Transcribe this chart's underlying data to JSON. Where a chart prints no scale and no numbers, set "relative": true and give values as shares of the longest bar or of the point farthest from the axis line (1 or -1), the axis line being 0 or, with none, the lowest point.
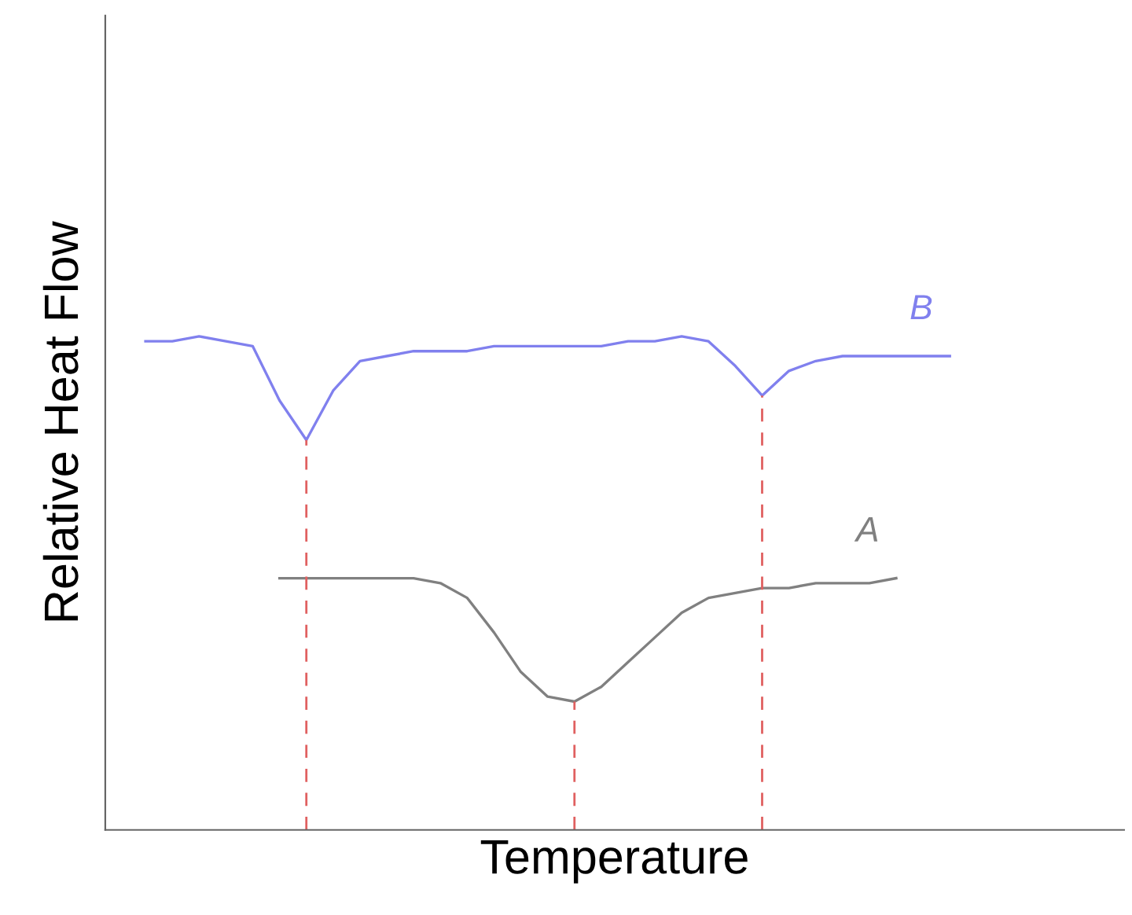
{
  "chart_data": {
    "type": "line",
    "relative": true,
    "xlabel": "Temperature",
    "ylabel": "Relative Heat Flow",
    "categories": [
      null,
      null,
      null,
      null,
      null,
      null,
      null,
      null,
      null,
      null,
      null,
      null,
      null,
      null,
      null,
      null,
      null,
      null,
      null,
      null,
      null,
      null,
      null,
      null,
      null,
      null,
      null,
      null,
      null,
      null,
      null
    ],
    "series": [
      {
        "name": "B",
        "color": "#8080ee",
        "values": [
          0.99,
          0.99,
          1.0,
          0.99,
          0.98,
          0.87,
          0.79,
          0.89,
          0.95,
          0.96,
          0.97,
          0.97,
          0.97,
          0.98,
          0.98,
          0.98,
          0.98,
          0.98,
          0.99,
          0.99,
          1.0,
          0.99,
          0.94,
          0.88,
          0.93,
          0.95,
          0.96,
          0.96,
          0.96,
          0.96,
          0.96
        ]
      },
      {
        "name": "A",
        "color": "#808080",
        "values": [
          null,
          null,
          null,
          null,
          null,
          0.51,
          0.51,
          0.51,
          0.51,
          0.51,
          0.51,
          0.5,
          0.47,
          0.4,
          0.32,
          0.27,
          0.26,
          0.29,
          0.34,
          0.39,
          0.44,
          0.47,
          0.48,
          0.49,
          0.49,
          0.5,
          0.5,
          0.5,
          0.51,
          null,
          null
        ]
      }
    ],
    "legend": false,
    "tick_labels": false
  }
}
